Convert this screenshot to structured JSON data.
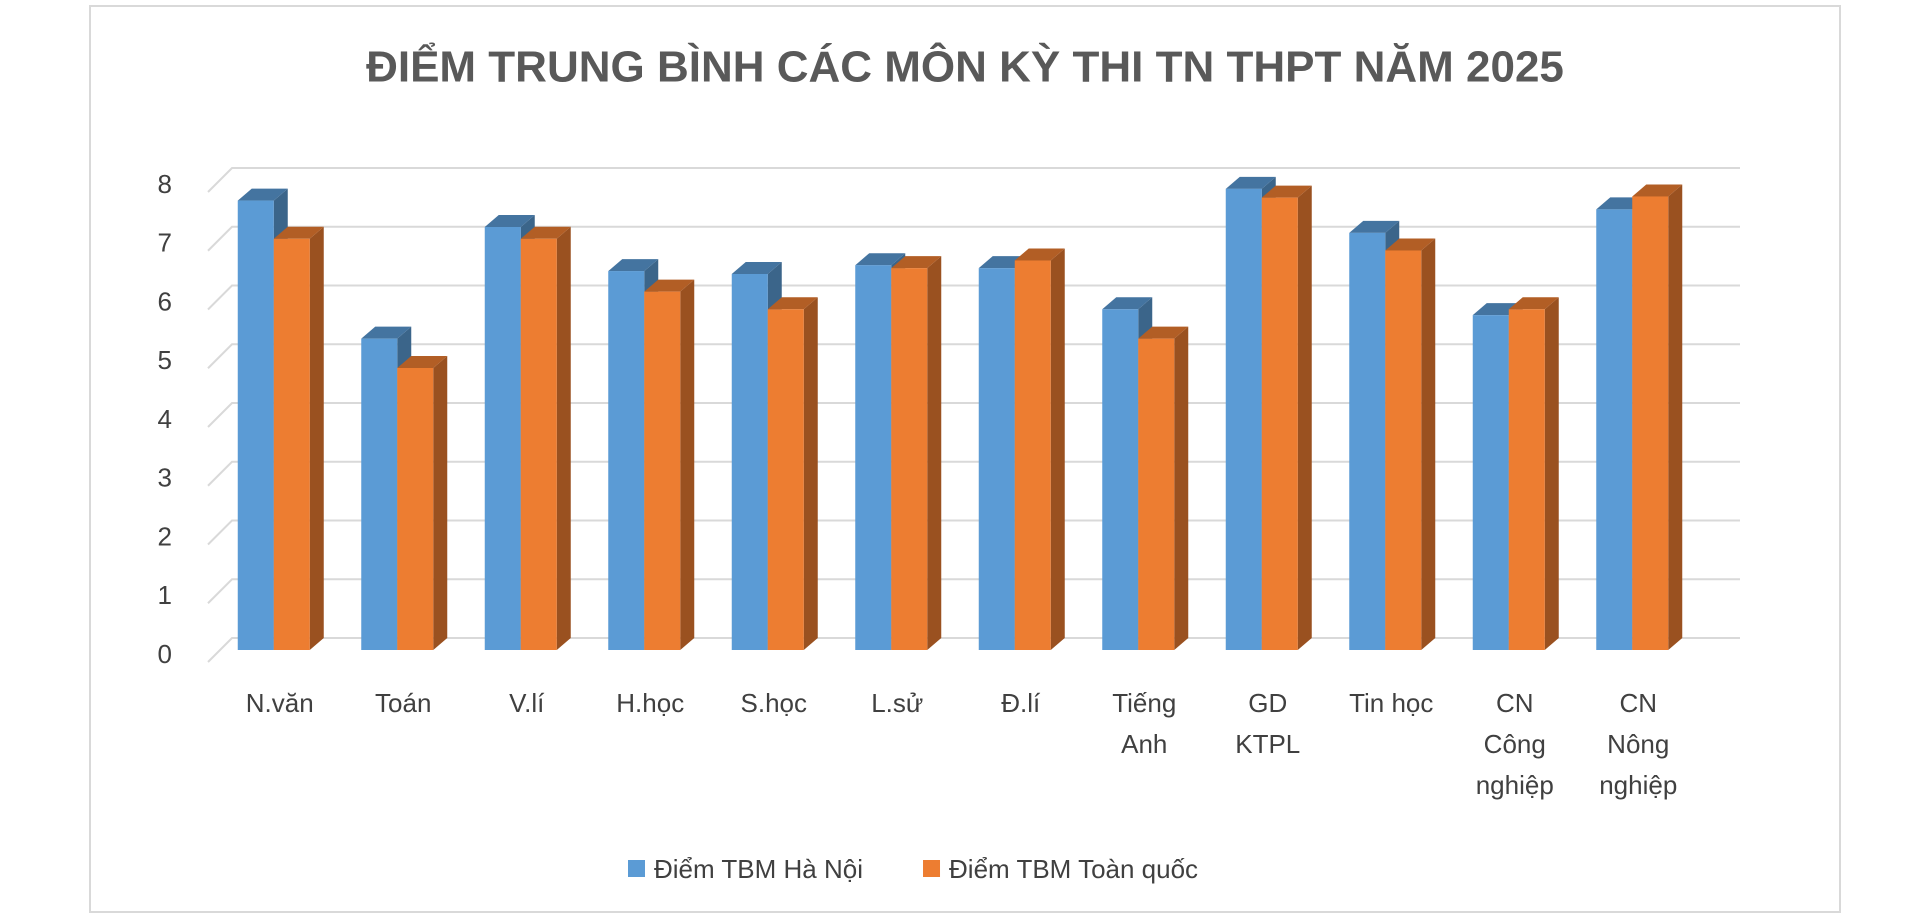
{
  "chart_data": {
    "type": "bar3d",
    "title": "ĐIỂM TRUNG BÌNH CÁC MÔN KỲ THI TN THPT NĂM 2025",
    "categories": [
      "N.văn",
      "Toán",
      "V.lí",
      "H.học",
      "S.học",
      "L.sử",
      "Đ.lí",
      "Tiếng Anh",
      "GD KTPL",
      "Tin học",
      "CN Công nghiệp",
      "CN Nông nghiệp"
    ],
    "series": [
      {
        "name": "Điểm TBM Hà Nội",
        "color": "#5b9bd5",
        "values": [
          7.65,
          5.3,
          7.2,
          6.45,
          6.4,
          6.55,
          6.5,
          5.8,
          7.85,
          7.1,
          5.7,
          7.5
        ]
      },
      {
        "name": "Điểm TBM Toàn quốc",
        "color": "#ed7d31",
        "values": [
          7.0,
          4.8,
          7.0,
          6.1,
          5.8,
          6.5,
          6.63,
          5.3,
          7.7,
          6.8,
          5.8,
          7.72
        ]
      }
    ],
    "ylim": [
      0,
      8
    ],
    "yticks": [
      0,
      1,
      2,
      3,
      4,
      5,
      6,
      7,
      8
    ],
    "grid": true,
    "legend": "bottom"
  }
}
